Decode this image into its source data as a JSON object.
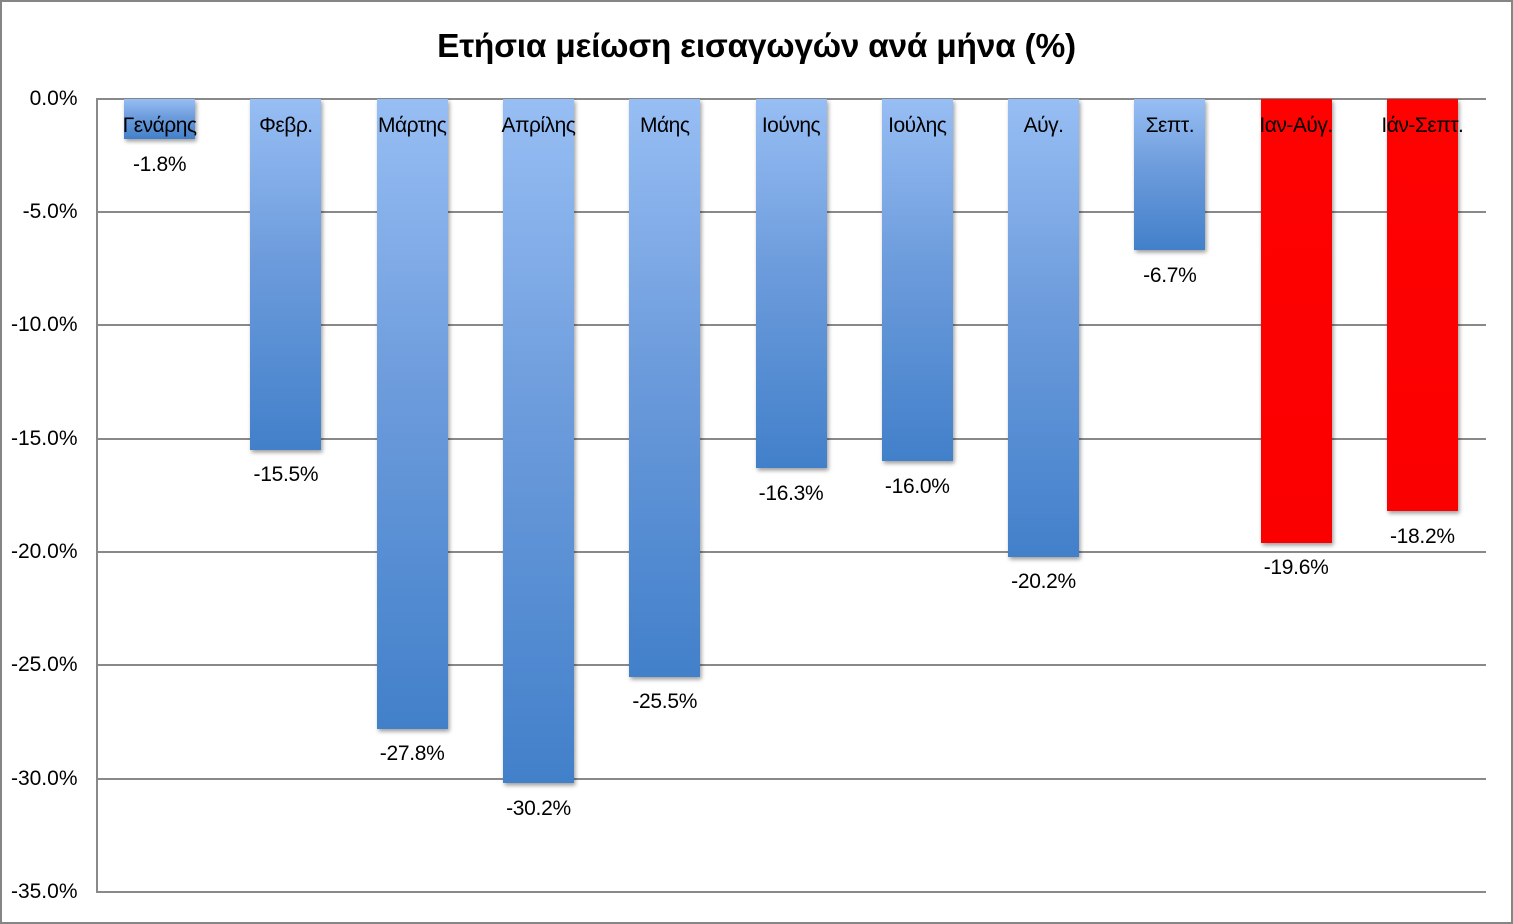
{
  "chart_data": {
    "type": "bar",
    "title": "Ετήσια μείωση εισαγωγών ανά μήνα (%)",
    "categories": [
      "Γενάρης",
      "Φεβρ.",
      "Μάρτης",
      "Απρίλης",
      "Μάης",
      "Ιούνης",
      "Ιούλης",
      "Αύγ.",
      "Σεπτ.",
      "Ιαν-Αύγ.",
      "Ιάν-Σεπτ."
    ],
    "values": [
      -1.8,
      -15.5,
      -27.8,
      -30.2,
      -25.5,
      -16.3,
      -16.0,
      -20.2,
      -6.7,
      -19.6,
      -18.2
    ],
    "value_labels": [
      "-1.8%",
      "-15.5%",
      "-27.8%",
      "-30.2%",
      "-25.5%",
      "-16.3%",
      "-16.0%",
      "-20.2%",
      "-6.7%",
      "-19.6%",
      "-18.2%"
    ],
    "bar_color_roles": [
      "month",
      "month",
      "month",
      "month",
      "month",
      "month",
      "month",
      "month",
      "month",
      "cumulative",
      "cumulative"
    ],
    "y_ticks": [
      "0.0%",
      "-5.0%",
      "-10.0%",
      "-15.0%",
      "-20.0%",
      "-25.0%",
      "-30.0%",
      "-35.0%"
    ],
    "ylim": [
      -35,
      0
    ],
    "y_tick_step": -5,
    "grid": true,
    "legend": "none",
    "xlabel": "",
    "ylabel": "",
    "colors": {
      "month_bar_gradient_top": "#97BEF4",
      "month_bar_gradient_bottom": "#4280CA",
      "cumulative_bar": "#FE0202",
      "gridline": "#898989",
      "axis_line": "#898989",
      "text": "#000000",
      "background": "#FFFFFF",
      "canvas_border": "#858585"
    }
  }
}
